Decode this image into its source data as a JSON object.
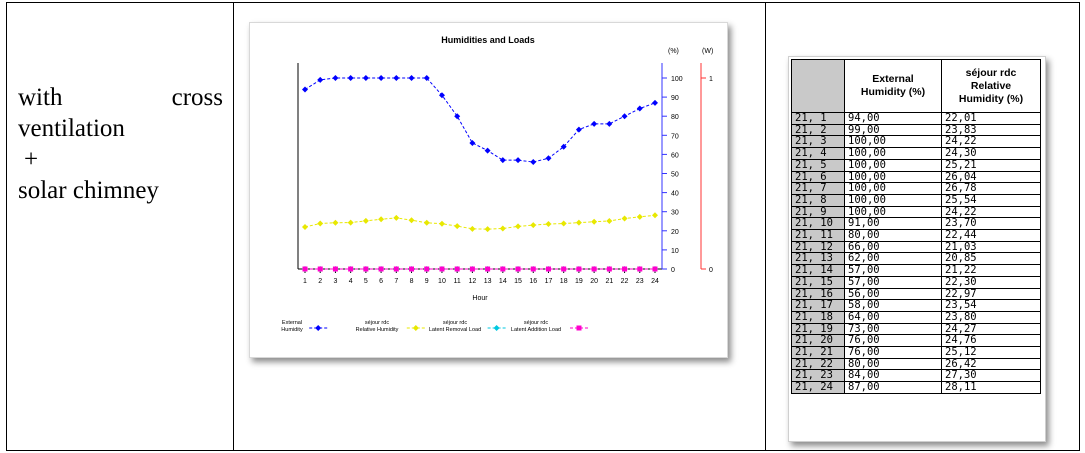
{
  "caption": {
    "line1_left": "with",
    "line1_right": "cross",
    "line2": "ventilation",
    "line3": "+",
    "line4": "solar chimney"
  },
  "chart_data": {
    "type": "line",
    "title": "Humidities and Loads",
    "xlabel": "Hour",
    "x": [
      1,
      2,
      3,
      4,
      5,
      6,
      7,
      8,
      9,
      10,
      11,
      12,
      13,
      14,
      15,
      16,
      17,
      18,
      19,
      20,
      21,
      22,
      23,
      24
    ],
    "y_left": {
      "unit": "(%)",
      "range": [
        0,
        100
      ],
      "ticks": [
        "0",
        "10",
        "20",
        "30",
        "40",
        "50",
        "60",
        "70",
        "80",
        "90",
        "100"
      ]
    },
    "y_right": {
      "unit": "(W)",
      "range": [
        0,
        1
      ],
      "ticks": [
        "0",
        "1"
      ]
    },
    "series": [
      {
        "name": "External Humidity",
        "legend_lines": [
          "External",
          "Humidity"
        ],
        "color": "#0000ff",
        "marker": "diamond",
        "values": [
          94,
          99,
          100,
          100,
          100,
          100,
          100,
          100,
          100,
          91,
          80,
          66,
          62,
          57,
          57,
          56,
          58,
          64,
          73,
          76,
          76,
          80,
          84,
          87
        ]
      },
      {
        "name": "séjour rdc Relative Humidity",
        "legend_lines": [
          "séjour rdc",
          "Relative Humidity"
        ],
        "color": "#e8e800",
        "marker": "diamond",
        "values": [
          22.01,
          23.83,
          24.22,
          24.3,
          25.21,
          26.04,
          26.78,
          25.54,
          24.22,
          23.7,
          22.44,
          21.03,
          20.85,
          21.22,
          22.3,
          22.97,
          23.54,
          23.8,
          24.27,
          24.76,
          25.12,
          26.42,
          27.3,
          28.11
        ]
      },
      {
        "name": "séjour rdc Latent Removal Load",
        "legend_lines": [
          "séjour rdc",
          "Latent Removal Load"
        ],
        "color": "#00c8e0",
        "marker": "diamond",
        "values": [
          0,
          0,
          0,
          0,
          0,
          0,
          0,
          0,
          0,
          0,
          0,
          0,
          0,
          0,
          0,
          0,
          0,
          0,
          0,
          0,
          0,
          0,
          0,
          0
        ]
      },
      {
        "name": "séjour rdc Latent Addition Load",
        "legend_lines": [
          "séjour rdc",
          "Latent Addition Load"
        ],
        "color": "#ff00cc",
        "marker": "square",
        "values": [
          0,
          0,
          0,
          0,
          0,
          0,
          0,
          0,
          0,
          0,
          0,
          0,
          0,
          0,
          0,
          0,
          0,
          0,
          0,
          0,
          0,
          0,
          0,
          0
        ]
      }
    ]
  },
  "table": {
    "headers": [
      "",
      "External Humidity (%)",
      "séjour rdc Relative Humidity (%)"
    ],
    "header_lines": [
      [],
      [
        "External",
        "Humidity (%)"
      ],
      [
        "séjour rdc",
        "Relative",
        "Humidity (%)"
      ]
    ],
    "rows": [
      [
        "21, 1",
        "94,00",
        "22,01"
      ],
      [
        "21, 2",
        "99,00",
        "23,83"
      ],
      [
        "21, 3",
        "100,00",
        "24,22"
      ],
      [
        "21, 4",
        "100,00",
        "24,30"
      ],
      [
        "21, 5",
        "100,00",
        "25,21"
      ],
      [
        "21, 6",
        "100,00",
        "26,04"
      ],
      [
        "21, 7",
        "100,00",
        "26,78"
      ],
      [
        "21, 8",
        "100,00",
        "25,54"
      ],
      [
        "21, 9",
        "100,00",
        "24,22"
      ],
      [
        "21, 10",
        "91,00",
        "23,70"
      ],
      [
        "21, 11",
        "80,00",
        "22,44"
      ],
      [
        "21, 12",
        "66,00",
        "21,03"
      ],
      [
        "21, 13",
        "62,00",
        "20,85"
      ],
      [
        "21, 14",
        "57,00",
        "21,22"
      ],
      [
        "21, 15",
        "57,00",
        "22,30"
      ],
      [
        "21, 16",
        "56,00",
        "22,97"
      ],
      [
        "21, 17",
        "58,00",
        "23,54"
      ],
      [
        "21, 18",
        "64,00",
        "23,80"
      ],
      [
        "21, 19",
        "73,00",
        "24,27"
      ],
      [
        "21, 20",
        "76,00",
        "24,76"
      ],
      [
        "21, 21",
        "76,00",
        "25,12"
      ],
      [
        "21, 22",
        "80,00",
        "26,42"
      ],
      [
        "21, 23",
        "84,00",
        "27,30"
      ],
      [
        "21, 24",
        "87,00",
        "28,11"
      ]
    ]
  }
}
